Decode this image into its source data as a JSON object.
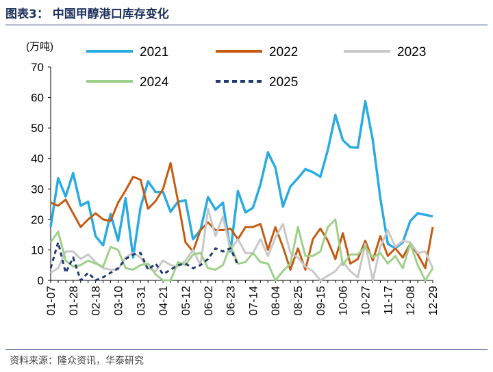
{
  "figure": {
    "title": "图表3： 中国甲醇港口库存变化",
    "source": "资料来源：隆众资讯，华泰研究"
  },
  "chart_data": {
    "type": "line",
    "ylabel": "(万吨)",
    "ylim": [
      0,
      70
    ],
    "yticks": [
      0,
      10,
      20,
      30,
      40,
      50,
      60,
      70
    ],
    "grid": false,
    "legend_position": "top",
    "x_tick_labels": [
      "01-07",
      "01-28",
      "02-18",
      "03-10",
      "03-31",
      "04-21",
      "05-12",
      "06-02",
      "06-23",
      "07-14",
      "08-04",
      "08-25",
      "09-15",
      "10-06",
      "10-27",
      "11-17",
      "12-08",
      "12-29"
    ],
    "series": [
      {
        "name": "2021",
        "color": "#29abe2",
        "dash": "solid",
        "width": 3.5,
        "x": [
          0,
          1,
          2,
          3,
          4,
          5,
          6,
          7,
          8,
          9,
          10,
          11,
          12,
          13,
          14,
          15,
          16,
          17,
          18,
          19,
          20,
          21,
          22,
          23,
          24,
          25,
          26,
          27,
          28,
          29,
          30,
          31,
          32,
          33,
          34,
          35,
          36,
          37,
          38,
          39,
          40,
          41,
          42,
          43,
          44,
          45,
          46,
          47,
          48,
          49,
          50,
          51
        ],
        "y": [
          17.5,
          33.5,
          27.5,
          35.2,
          24.5,
          25.8,
          14.5,
          11.5,
          21.8,
          13,
          27,
          7.5,
          24,
          32.5,
          29,
          29,
          22.5,
          25.8,
          26.3,
          13.5,
          16.5,
          27.3,
          23.2,
          25.5,
          9.5,
          29.3,
          22.3,
          23.8,
          31.5,
          42,
          37,
          24.2,
          30.8,
          33.5,
          36.5,
          35.5,
          34,
          42.8,
          54.3,
          46,
          43.7,
          43.5,
          58.8,
          46,
          27,
          12,
          10.5,
          12.5,
          19.5,
          22,
          21.5,
          21
        ]
      },
      {
        "name": "2022",
        "color": "#c55a11",
        "dash": "solid",
        "width": 3,
        "x": [
          0,
          1,
          2,
          3,
          4,
          5,
          6,
          7,
          8,
          9,
          10,
          11,
          12,
          13,
          14,
          15,
          16,
          17,
          18,
          19,
          20,
          21,
          22,
          23,
          24,
          25,
          26,
          27,
          28,
          29,
          30,
          31,
          32,
          33,
          34,
          35,
          36,
          37,
          38,
          39,
          40,
          41,
          42,
          43,
          44,
          45,
          46,
          47,
          48,
          49,
          50,
          51
        ],
        "y": [
          25.5,
          24.5,
          26.5,
          22,
          17.5,
          20,
          22,
          20,
          19.5,
          25.5,
          29.5,
          34,
          33,
          23.5,
          26,
          30,
          38.5,
          26,
          12.5,
          9.5,
          16.5,
          19,
          16.5,
          16.5,
          17,
          13.5,
          17.5,
          17.5,
          18.5,
          10,
          17.5,
          11,
          3.5,
          10.5,
          3.5,
          13.5,
          17,
          13,
          7,
          15.5,
          5.5,
          7,
          13,
          6.5,
          14.5,
          8,
          10.5,
          7.5,
          12,
          8.5,
          4,
          17.5
        ]
      },
      {
        "name": "2023",
        "color": "#c8c8c8",
        "dash": "solid",
        "width": 3,
        "x": [
          0,
          1,
          2,
          3,
          4,
          5,
          6,
          7,
          8,
          9,
          10,
          11,
          12,
          13,
          14,
          15,
          16,
          17,
          18,
          19,
          20,
          21,
          22,
          23,
          24,
          25,
          26,
          27,
          28,
          29,
          30,
          31,
          32,
          33,
          34,
          35,
          36,
          37,
          38,
          39,
          40,
          41,
          42,
          43,
          44,
          45,
          46,
          47,
          48,
          49,
          50,
          51
        ],
        "y": [
          2.5,
          4,
          9.5,
          9.5,
          7,
          8.5,
          6,
          4,
          3.5,
          3.5,
          7.5,
          9,
          7.5,
          4,
          3,
          6.5,
          5,
          4.5,
          6.5,
          10,
          5,
          23.5,
          14.5,
          21,
          10,
          13.5,
          9,
          9,
          13.5,
          8,
          14,
          18.5,
          9,
          7.5,
          4.5,
          3,
          0,
          1.5,
          3,
          6,
          3,
          1,
          12,
          0,
          11,
          16.5,
          11,
          13,
          12.5,
          9,
          9.5,
          4
        ]
      },
      {
        "name": "2024",
        "color": "#9fd08a",
        "dash": "solid",
        "width": 3,
        "x": [
          0,
          1,
          2,
          3,
          4,
          5,
          6,
          7,
          8,
          9,
          10,
          11,
          12,
          13,
          14,
          15,
          16,
          17,
          18,
          19,
          20,
          21,
          22,
          23,
          24,
          25,
          26,
          27,
          28,
          29,
          30,
          31,
          32,
          33,
          34,
          35,
          36,
          37,
          38,
          39,
          40,
          41,
          42,
          43,
          44,
          45,
          46,
          47,
          48,
          49,
          50,
          51
        ],
        "y": [
          12.5,
          16,
          6.5,
          4.5,
          5,
          6.5,
          5.5,
          4.5,
          11,
          10,
          4,
          3.5,
          5,
          5.5,
          2,
          0,
          0,
          6,
          5,
          8.5,
          9,
          4,
          3.5,
          5,
          11.5,
          5.5,
          6,
          9,
          6,
          5.5,
          0,
          3,
          5.5,
          17.5,
          8,
          8,
          9.5,
          17.5,
          20,
          5,
          8.5,
          8.5,
          11,
          7.5,
          9,
          5.5,
          8,
          4,
          12,
          5,
          0,
          4
        ]
      },
      {
        "name": "2025",
        "color": "#1f3a6e",
        "dash": "6,5",
        "width": 3,
        "x": [
          0,
          1,
          2,
          3,
          4,
          5,
          6,
          7,
          8,
          9,
          10,
          11,
          12,
          13,
          14,
          15,
          16,
          17,
          18,
          19,
          20,
          21,
          22,
          23,
          24,
          25
        ],
        "y": [
          4,
          12.5,
          2.5,
          7.5,
          0,
          2.5,
          0,
          1,
          2.5,
          4,
          7,
          8.5,
          9,
          3.5,
          5.5,
          2,
          3.5,
          5,
          5.5,
          4,
          5,
          7,
          10.5,
          9.5,
          10.5,
          5
        ]
      }
    ]
  }
}
